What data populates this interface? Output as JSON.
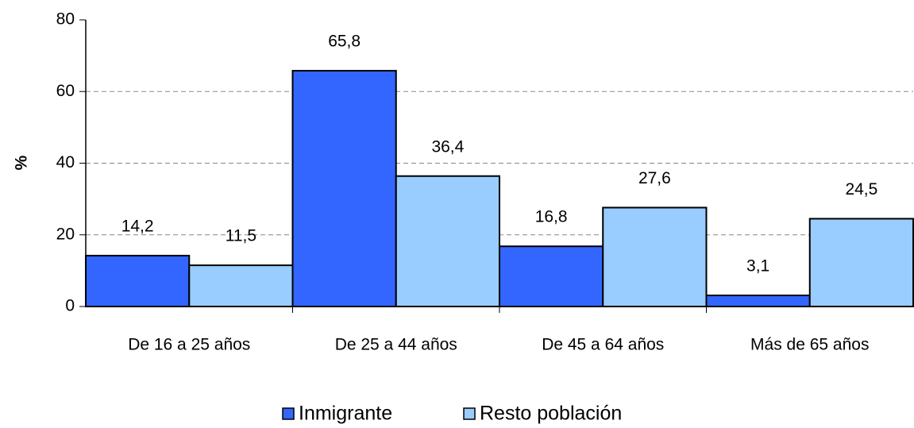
{
  "chart_data": {
    "type": "bar",
    "ylabel": "%",
    "categories": [
      "De 16 a 25 años",
      "De 25 a 44 años",
      "De 45 a 64 años",
      "Más de 65 años"
    ],
    "series": [
      {
        "name": "Inmigrante",
        "color": "#3366ff",
        "values": [
          14.2,
          65.8,
          16.8,
          3.1
        ],
        "value_labels": [
          "14,2",
          "65,8",
          "16,8",
          "3,1"
        ]
      },
      {
        "name": "Resto población",
        "color": "#99ccff",
        "values": [
          11.5,
          36.4,
          27.6,
          24.5
        ],
        "value_labels": [
          "11,5",
          "36,4",
          "27,6",
          "24,5"
        ]
      }
    ],
    "ylim": [
      0,
      80
    ],
    "yticks": [
      0,
      20,
      40,
      60,
      80
    ],
    "grid": true,
    "legend": "bottom"
  }
}
